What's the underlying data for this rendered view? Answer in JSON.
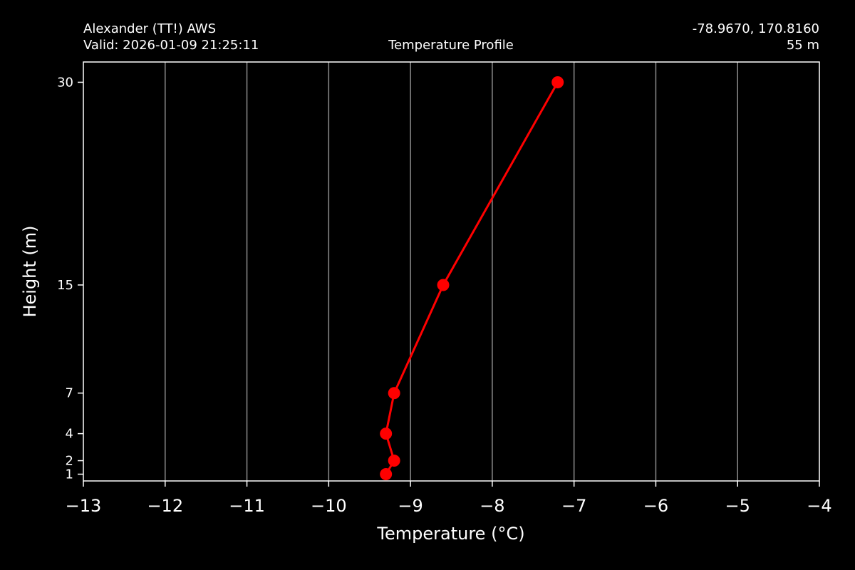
{
  "header": {
    "station": "Alexander (TT!) AWS",
    "valid": "Valid: 2026-01-09 21:25:11",
    "center_title": "Temperature Profile",
    "coords": "-78.9670, 170.8160",
    "elevation": "55 m"
  },
  "chart_data": {
    "type": "line",
    "title": "Temperature Profile",
    "xlabel": "Temperature ($^\\circ$C)",
    "xlabel_display": "Temperature (°C)",
    "ylabel": "Height (m)",
    "xlim": [
      -13,
      -4
    ],
    "ylim": [
      0.5,
      31.5
    ],
    "x_ticks": [
      -13,
      -12,
      -11,
      -10,
      -9,
      -8,
      -7,
      -6,
      -5,
      -4
    ],
    "x_tick_labels": [
      "−13",
      "−12",
      "−11",
      "−10",
      "−9",
      "−8",
      "−7",
      "−6",
      "−5",
      "−4"
    ],
    "y_ticks": [
      1,
      2,
      4,
      7,
      15,
      30
    ],
    "y_tick_labels": [
      "1",
      "2",
      "4",
      "7",
      "15",
      "30"
    ],
    "grid": "vertical",
    "series": [
      {
        "color": "#ff0000",
        "points": [
          {
            "x": -9.3,
            "y": 1
          },
          {
            "x": -9.2,
            "y": 2
          },
          {
            "x": -9.3,
            "y": 4
          },
          {
            "x": -9.2,
            "y": 7
          },
          {
            "x": -8.6,
            "y": 15
          },
          {
            "x": -7.2,
            "y": 30
          }
        ]
      }
    ]
  },
  "colors": {
    "background": "#000000",
    "foreground": "#ffffff",
    "grid": "#8c8c8c",
    "series": "#ff0000"
  }
}
